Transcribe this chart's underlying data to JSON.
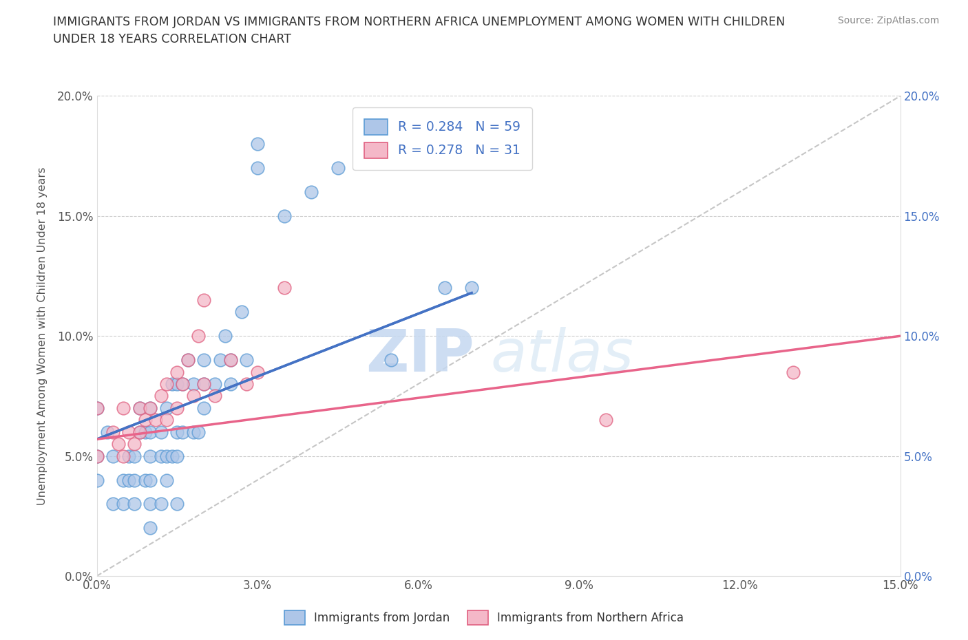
{
  "title": "IMMIGRANTS FROM JORDAN VS IMMIGRANTS FROM NORTHERN AFRICA UNEMPLOYMENT AMONG WOMEN WITH CHILDREN\nUNDER 18 YEARS CORRELATION CHART",
  "source": "Source: ZipAtlas.com",
  "ylabel": "Unemployment Among Women with Children Under 18 years",
  "xlim": [
    0.0,
    0.15
  ],
  "ylim": [
    0.0,
    0.2
  ],
  "xticks": [
    0.0,
    0.03,
    0.06,
    0.09,
    0.12,
    0.15
  ],
  "yticks": [
    0.0,
    0.05,
    0.1,
    0.15,
    0.2
  ],
  "xtick_labels": [
    "0.0%",
    "3.0%",
    "6.0%",
    "9.0%",
    "12.0%",
    "15.0%"
  ],
  "ytick_labels": [
    "0.0%",
    "5.0%",
    "10.0%",
    "15.0%",
    "20.0%"
  ],
  "jordan_color": "#aec6e8",
  "jordan_edge": "#5b9bd5",
  "northern_africa_color": "#f4b8c8",
  "northern_africa_edge": "#e06080",
  "jordan_R": "0.284",
  "jordan_N": "59",
  "northern_africa_R": "0.278",
  "northern_africa_N": "31",
  "trend_jordan_color": "#4472c4",
  "trend_northern_africa_color": "#e8648a",
  "trend_diagonal_color": "#b8b8b8",
  "watermark_zip": "ZIP",
  "watermark_atlas": "atlas",
  "jordan_line_x0": 0.0,
  "jordan_line_y0": 0.057,
  "jordan_line_x1": 0.07,
  "jordan_line_y1": 0.118,
  "na_line_x0": 0.0,
  "na_line_y0": 0.057,
  "na_line_x1": 0.15,
  "na_line_y1": 0.1,
  "jordan_x": [
    0.0,
    0.0,
    0.0,
    0.002,
    0.003,
    0.003,
    0.005,
    0.005,
    0.006,
    0.006,
    0.007,
    0.007,
    0.007,
    0.008,
    0.008,
    0.009,
    0.009,
    0.01,
    0.01,
    0.01,
    0.01,
    0.01,
    0.01,
    0.012,
    0.012,
    0.012,
    0.013,
    0.013,
    0.013,
    0.014,
    0.014,
    0.015,
    0.015,
    0.015,
    0.015,
    0.016,
    0.016,
    0.017,
    0.018,
    0.018,
    0.019,
    0.02,
    0.02,
    0.02,
    0.022,
    0.023,
    0.024,
    0.025,
    0.025,
    0.027,
    0.028,
    0.03,
    0.03,
    0.035,
    0.04,
    0.045,
    0.055,
    0.065,
    0.07
  ],
  "jordan_y": [
    0.04,
    0.05,
    0.07,
    0.06,
    0.03,
    0.05,
    0.03,
    0.04,
    0.04,
    0.05,
    0.03,
    0.04,
    0.05,
    0.06,
    0.07,
    0.04,
    0.06,
    0.02,
    0.03,
    0.04,
    0.05,
    0.06,
    0.07,
    0.03,
    0.05,
    0.06,
    0.04,
    0.05,
    0.07,
    0.05,
    0.08,
    0.03,
    0.05,
    0.06,
    0.08,
    0.06,
    0.08,
    0.09,
    0.06,
    0.08,
    0.06,
    0.07,
    0.08,
    0.09,
    0.08,
    0.09,
    0.1,
    0.08,
    0.09,
    0.11,
    0.09,
    0.17,
    0.18,
    0.15,
    0.16,
    0.17,
    0.09,
    0.12,
    0.12
  ],
  "northern_africa_x": [
    0.0,
    0.0,
    0.003,
    0.004,
    0.005,
    0.005,
    0.006,
    0.007,
    0.008,
    0.008,
    0.009,
    0.01,
    0.011,
    0.012,
    0.013,
    0.013,
    0.015,
    0.015,
    0.016,
    0.017,
    0.018,
    0.019,
    0.02,
    0.02,
    0.022,
    0.025,
    0.028,
    0.03,
    0.035,
    0.095,
    0.13
  ],
  "northern_africa_y": [
    0.05,
    0.07,
    0.06,
    0.055,
    0.05,
    0.07,
    0.06,
    0.055,
    0.06,
    0.07,
    0.065,
    0.07,
    0.065,
    0.075,
    0.065,
    0.08,
    0.07,
    0.085,
    0.08,
    0.09,
    0.075,
    0.1,
    0.08,
    0.115,
    0.075,
    0.09,
    0.08,
    0.085,
    0.12,
    0.065,
    0.085
  ]
}
